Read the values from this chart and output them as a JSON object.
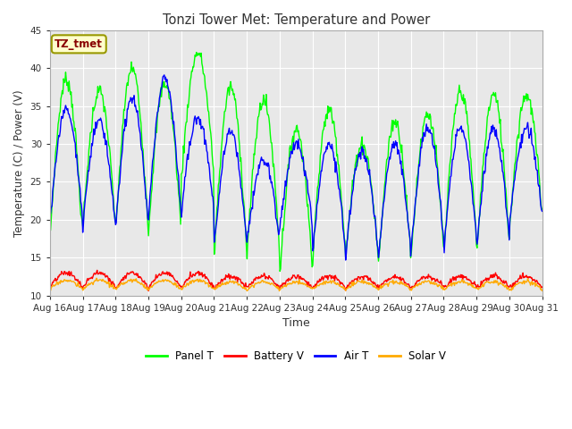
{
  "title": "Tonzi Tower Met: Temperature and Power",
  "xlabel": "Time",
  "ylabel": "Temperature (C) / Power (V)",
  "ylim": [
    10,
    45
  ],
  "yticks": [
    10,
    15,
    20,
    25,
    30,
    35,
    40,
    45
  ],
  "plot_bg_color": "#e8e8e8",
  "fig_bg_color": "#ffffff",
  "grid_color": "#ffffff",
  "label_box_text": "TZ_tmet",
  "label_box_bg": "#ffffcc",
  "label_box_fg": "#880000",
  "panel_t_color": "#00ff00",
  "battery_v_color": "#ff0000",
  "air_t_color": "#0000ff",
  "solar_v_color": "#ffaa00",
  "line_width": 1.0,
  "x_labels": [
    "Aug 16",
    "Aug 17",
    "Aug 18",
    "Aug 19",
    "Aug 20",
    "Aug 21",
    "Aug 22",
    "Aug 23",
    "Aug 24",
    "Aug 25",
    "Aug 26",
    "Aug 27",
    "Aug 28",
    "Aug 29",
    "Aug 30",
    "Aug 31"
  ],
  "legend_entries": [
    "Panel T",
    "Battery V",
    "Air T",
    "Solar V"
  ],
  "panel_peaks": [
    38.5,
    37.0,
    40.0,
    38.0,
    42.0,
    37.5,
    35.8,
    32.0,
    34.5,
    30.0,
    33.0,
    34.0,
    37.0,
    36.5,
    36.5
  ],
  "panel_troughs": [
    17.5,
    19.0,
    18.5,
    18.5,
    25.5,
    15.5,
    15.5,
    13.0,
    15.5,
    15.0,
    14.0,
    15.5,
    16.0,
    16.0,
    19.5
  ],
  "air_peaks": [
    34.5,
    33.0,
    36.0,
    38.5,
    33.5,
    31.5,
    28.0,
    30.0,
    30.0,
    29.0,
    30.0,
    32.0,
    32.0,
    32.0,
    32.0
  ],
  "air_troughs": [
    20.0,
    19.0,
    19.0,
    20.5,
    21.0,
    16.5,
    17.0,
    19.0,
    16.0,
    15.5,
    15.0,
    16.5,
    16.5,
    16.5,
    20.0
  ],
  "batt_peaks": [
    13.0,
    13.0,
    13.0,
    13.0,
    13.0,
    12.5,
    12.5,
    12.5,
    12.5,
    12.5,
    12.5,
    12.5,
    12.5,
    12.5,
    12.5
  ],
  "batt_troughs": [
    11.0,
    11.0,
    11.0,
    11.0,
    11.0,
    11.0,
    11.0,
    11.0,
    11.0,
    11.0,
    11.0,
    11.0,
    11.0,
    11.0,
    11.0
  ],
  "solar_peaks": [
    12.0,
    12.0,
    12.0,
    12.0,
    12.0,
    11.8,
    11.8,
    11.8,
    11.8,
    11.8,
    11.8,
    11.8,
    11.8,
    11.8,
    11.8
  ],
  "solar_troughs": [
    10.8,
    10.8,
    10.8,
    10.8,
    10.8,
    10.8,
    10.8,
    10.8,
    10.8,
    10.8,
    10.8,
    10.8,
    10.8,
    10.8,
    10.8
  ]
}
